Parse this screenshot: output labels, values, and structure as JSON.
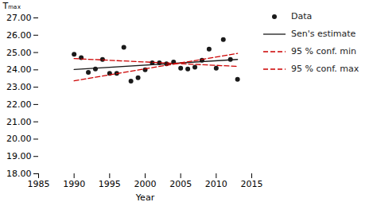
{
  "chart_data": {
    "type": "scatter",
    "xlabel": "Year",
    "ylabel": "Tₘₐₓ",
    "xlim": [
      1985,
      2015
    ],
    "xticks": [
      1985,
      1990,
      1995,
      2000,
      2005,
      2010,
      2015
    ],
    "ylim": [
      18.0,
      27.0
    ],
    "yticks": [
      {
        "value": 18.0,
        "label": "18.00"
      },
      {
        "value": 19.0,
        "label": "19.00"
      },
      {
        "value": 20.0,
        "label": "20.00"
      },
      {
        "value": 21.0,
        "label": "21.00"
      },
      {
        "value": 22.0,
        "label": "22.00"
      },
      {
        "value": 23.0,
        "label": "23.00"
      },
      {
        "value": 24.0,
        "label": "24.00"
      },
      {
        "value": 25.0,
        "label": "25.00"
      },
      {
        "value": 26.0,
        "label": "26.00"
      },
      {
        "value": 27.0,
        "label": "27.00"
      }
    ],
    "grid": false,
    "legend": "right",
    "series": [
      {
        "name": "Data",
        "type": "scatter",
        "marker": "circle",
        "color": "#1a1a1a",
        "x": [
          1990,
          1991,
          1992,
          1993,
          1994,
          1995,
          1996,
          1997,
          1998,
          1999,
          2000,
          2001,
          2002,
          2003,
          2004,
          2005,
          2006,
          2007,
          2008,
          2009,
          2010,
          2011,
          2012,
          2013
        ],
        "values": [
          24.9,
          24.7,
          23.85,
          24.05,
          24.6,
          23.8,
          23.8,
          25.3,
          23.35,
          23.55,
          24.0,
          24.4,
          24.4,
          24.35,
          24.45,
          24.1,
          24.05,
          24.15,
          24.55,
          25.2,
          24.1,
          25.75,
          24.6,
          23.45
        ]
      },
      {
        "name": "Sen's estimate",
        "type": "line",
        "line_style": "solid",
        "color": "#1a1a1a",
        "x": [
          1990,
          2013
        ],
        "values": [
          24.02,
          24.6
        ]
      },
      {
        "name": "95 % conf. min",
        "type": "line",
        "line_style": "dashed",
        "color": "#cc0000",
        "x": [
          1990,
          2013
        ],
        "values": [
          24.65,
          24.2
        ]
      },
      {
        "name": "95 % conf. max",
        "type": "line",
        "line_style": "dashed",
        "color": "#cc0000",
        "x": [
          1990,
          2013
        ],
        "values": [
          23.37,
          24.95
        ]
      }
    ]
  }
}
